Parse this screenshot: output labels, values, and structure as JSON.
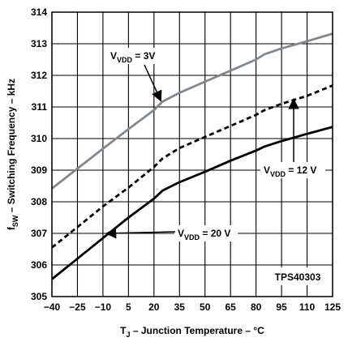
{
  "chart_data": {
    "type": "line",
    "title": "",
    "xlabel": {
      "pre": "T",
      "sub": "J",
      "post": " – Junction Temperature – °C"
    },
    "ylabel": {
      "pre": "f",
      "sub": "SW",
      "post": " – Switching Frequency – kHz"
    },
    "xlim": [
      -40,
      125
    ],
    "ylim": [
      305,
      314
    ],
    "x_ticks": [
      -40,
      -25,
      -10,
      5,
      20,
      35,
      50,
      65,
      80,
      95,
      110,
      125
    ],
    "x_tick_labels": [
      "−40",
      "−25",
      "−10",
      "5",
      "20",
      "35",
      "50",
      "65",
      "80",
      "95",
      "110",
      "125"
    ],
    "y_ticks": [
      305,
      306,
      307,
      308,
      309,
      310,
      311,
      312,
      313,
      314
    ],
    "y_tick_labels": [
      "305",
      "306",
      "307",
      "308",
      "309",
      "310",
      "311",
      "312",
      "313",
      "314"
    ],
    "grid": true,
    "part_label": "TPS40303",
    "series": [
      {
        "key": "vdd3",
        "label": {
          "pre": "V",
          "sub": "VDD",
          "post": " = 3V"
        },
        "color": "#808890",
        "dash": "solid",
        "x": [
          -40,
          -25,
          -10,
          5,
          20,
          25,
          35,
          50,
          65,
          80,
          85,
          95,
          110,
          125
        ],
        "y": [
          308.42,
          309.05,
          309.68,
          310.3,
          310.9,
          311.17,
          311.45,
          311.8,
          312.15,
          312.5,
          312.67,
          312.85,
          313.08,
          313.32
        ]
      },
      {
        "key": "vdd12",
        "label": {
          "pre": "V",
          "sub": "VDD",
          "post": " = 12 V"
        },
        "color": "#000000",
        "dash": "dashed",
        "x": [
          -40,
          -25,
          -10,
          5,
          20,
          25,
          35,
          50,
          65,
          80,
          85,
          95,
          110,
          125
        ],
        "y": [
          306.55,
          307.2,
          307.85,
          308.45,
          309.1,
          309.37,
          309.7,
          310.05,
          310.4,
          310.75,
          310.9,
          311.1,
          311.35,
          311.68
        ]
      },
      {
        "key": "vdd20",
        "label": {
          "pre": "V",
          "sub": "VDD",
          "post": " = 20 V"
        },
        "color": "#000000",
        "dash": "solid",
        "x": [
          -40,
          -25,
          -10,
          5,
          20,
          25,
          35,
          50,
          65,
          80,
          85,
          95,
          110,
          125
        ],
        "y": [
          305.55,
          306.2,
          306.85,
          307.5,
          308.1,
          308.35,
          308.62,
          308.95,
          309.3,
          309.62,
          309.75,
          309.92,
          310.15,
          310.37
        ]
      }
    ]
  }
}
